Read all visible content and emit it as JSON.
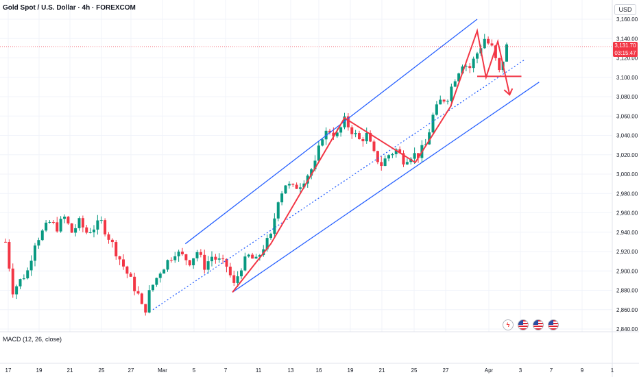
{
  "header": {
    "title": "Gold Spot / U.S. Dollar · 4h · FOREXCOM",
    "currency": "USD"
  },
  "price_tag": {
    "price": "3,131.70",
    "countdown": "03:15:47"
  },
  "macd": {
    "label": "MACD (12, 26, close)"
  },
  "events": {
    "icons": [
      "lightning-icon",
      "us-flag-icon",
      "us-flag-icon",
      "us-flag-icon"
    ]
  },
  "colors": {
    "up": "#089981",
    "down": "#f23645",
    "channel": "#2962ff",
    "pattern": "#f23645",
    "price_line": "#f23645"
  },
  "chart_data": {
    "type": "candlestick",
    "title": "Gold Spot / U.S. Dollar · 4h · FOREXCOM",
    "ylim": [
      2840,
      3160
    ],
    "y_ticks": [
      2840,
      2860,
      2880,
      2900,
      2920,
      2940,
      2960,
      2980,
      3000,
      3020,
      3040,
      3060,
      3080,
      3100,
      3120,
      3140,
      3160
    ],
    "y_tick_labels": [
      "2,840.00",
      "2,860.00",
      "2,880.00",
      "2,900.00",
      "2,920.00",
      "2,940.00",
      "2,960.00",
      "2,980.00",
      "3,000.00",
      "3,020.00",
      "3,040.00",
      "3,060.00",
      "3,080.00",
      "3,100.00",
      "3,120.00",
      "3,140.00",
      "3,160.00"
    ],
    "x_ticks": [
      "17",
      "19",
      "21",
      "25",
      "27",
      "Mar",
      "5",
      "7",
      "11",
      "13",
      "16",
      "19",
      "21",
      "25",
      "27",
      "Apr",
      "3",
      "7",
      "9",
      "1"
    ],
    "last_price": 3131.7,
    "grid": true,
    "close_path": [
      [
        0,
        2930
      ],
      [
        0.5,
        2880
      ],
      [
        1.0,
        2890
      ],
      [
        1.5,
        2900
      ],
      [
        2.0,
        2930
      ],
      [
        2.5,
        2940
      ],
      [
        3.0,
        2950
      ],
      [
        3.5,
        2945
      ],
      [
        4.0,
        2955
      ],
      [
        4.5,
        2940
      ],
      [
        5.0,
        2950
      ],
      [
        5.5,
        2940
      ],
      [
        6.0,
        2945
      ],
      [
        6.5,
        2950
      ],
      [
        7.0,
        2935
      ],
      [
        7.5,
        2920
      ],
      [
        8.0,
        2905
      ],
      [
        8.5,
        2890
      ],
      [
        9.0,
        2875
      ],
      [
        9.4,
        2855
      ],
      [
        9.8,
        2880
      ],
      [
        10.5,
        2900
      ],
      [
        11.0,
        2910
      ],
      [
        11.5,
        2920
      ],
      [
        12.0,
        2915
      ],
      [
        12.5,
        2910
      ],
      [
        13.0,
        2920
      ],
      [
        13.5,
        2905
      ],
      [
        14.0,
        2915
      ],
      [
        14.5,
        2910
      ],
      [
        15.0,
        2905
      ],
      [
        15.5,
        2885
      ],
      [
        16.0,
        2905
      ],
      [
        16.5,
        2915
      ],
      [
        17.0,
        2910
      ],
      [
        17.5,
        2925
      ],
      [
        18.0,
        2935
      ],
      [
        18.5,
        2975
      ],
      [
        19.0,
        2990
      ],
      [
        19.5,
        2985
      ],
      [
        20.0,
        2990
      ],
      [
        20.5,
        3000
      ],
      [
        21.0,
        3010
      ],
      [
        21.5,
        3040
      ],
      [
        22.0,
        3045
      ],
      [
        22.5,
        3040
      ],
      [
        23.0,
        3055
      ],
      [
        23.5,
        3045
      ],
      [
        24.0,
        3035
      ],
      [
        24.5,
        3040
      ],
      [
        25.0,
        3020
      ],
      [
        25.5,
        3010
      ],
      [
        26.0,
        3020
      ],
      [
        26.5,
        3025
      ],
      [
        27.0,
        3015
      ],
      [
        27.5,
        3020
      ],
      [
        28.0,
        3020
      ],
      [
        28.5,
        3030
      ],
      [
        29.0,
        3060
      ],
      [
        29.5,
        3075
      ],
      [
        30.0,
        3080
      ],
      [
        30.5,
        3100
      ],
      [
        31.0,
        3115
      ],
      [
        31.5,
        3110
      ],
      [
        32.0,
        3125
      ],
      [
        32.5,
        3140
      ],
      [
        33.0,
        3130
      ],
      [
        33.5,
        3105
      ],
      [
        34.0,
        3131.7
      ]
    ],
    "channel": {
      "upper": [
        [
          12.2,
          2928
        ],
        [
          32.0,
          3160
        ]
      ],
      "lower": [
        [
          15.4,
          2878
        ],
        [
          36.2,
          3095
        ]
      ],
      "mid": [
        [
          10.0,
          2860
        ],
        [
          35.2,
          3118
        ]
      ]
    },
    "pattern": [
      [
        15.4,
        2878
      ],
      [
        18.0,
        2928
      ],
      [
        23.0,
        3058
      ],
      [
        27.8,
        3012
      ],
      [
        30.2,
        3070
      ],
      [
        32.0,
        3148
      ],
      [
        32.6,
        3100
      ],
      [
        33.4,
        3137
      ],
      [
        34.2,
        3082
      ]
    ],
    "neckline": [
      [
        32.0,
        3101
      ],
      [
        35.0,
        3101
      ]
    ]
  }
}
